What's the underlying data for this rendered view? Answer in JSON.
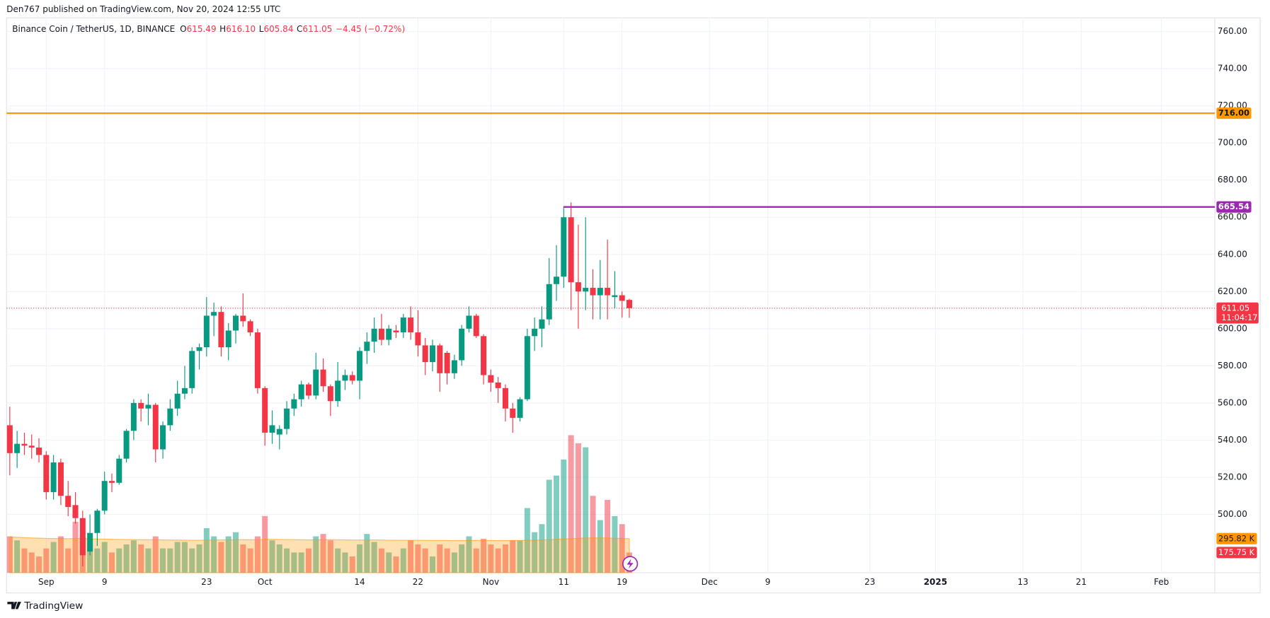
{
  "header": {
    "published": "Den767 published on TradingView.com, Nov 20, 2024 12:55 UTC",
    "brand": "TradingView"
  },
  "chart_data": {
    "type": "candlestick",
    "symbol": "Binance Coin / TetherUS, 1D, BINANCE",
    "legend": [
      {
        "label": "O",
        "value": "615.49"
      },
      {
        "label": "H",
        "value": "616.10"
      },
      {
        "label": "L",
        "value": "605.84"
      },
      {
        "label": "C",
        "value": "611.05"
      }
    ],
    "change": "−4.45 (−0.72%)",
    "up_color": "#089981",
    "down_color": "#f23645",
    "categories": [
      null,
      null,
      null,
      null,
      null,
      "Sep",
      null,
      null,
      null,
      null,
      null,
      null,
      null,
      "9",
      null,
      null,
      null,
      null,
      null,
      null,
      null,
      null,
      null,
      null,
      null,
      null,
      null,
      "23",
      null,
      null,
      null,
      null,
      null,
      null,
      null,
      "Oct",
      null,
      null,
      null,
      null,
      null,
      null,
      null,
      null,
      null,
      null,
      null,
      null,
      "14",
      null,
      null,
      null,
      null,
      null,
      null,
      null,
      "22",
      null,
      null,
      null,
      null,
      null,
      null,
      null,
      null,
      null,
      "Nov",
      null,
      null,
      null,
      null,
      null,
      null,
      null,
      null,
      null,
      "11",
      null,
      null,
      null,
      null,
      null,
      null,
      null,
      "19",
      null,
      null,
      null,
      null,
      null,
      null,
      null,
      null,
      null,
      null,
      null,
      "Dec",
      null,
      null,
      null,
      null,
      null,
      null,
      null,
      "9",
      null,
      null,
      null,
      null,
      null,
      null,
      null,
      null,
      null,
      null,
      null,
      null,
      null,
      "23",
      null,
      null,
      null,
      null,
      null,
      null,
      null,
      null,
      "2025",
      null,
      null,
      null,
      null,
      null,
      null,
      null,
      null,
      null,
      null,
      null,
      "13",
      null,
      null,
      null,
      null,
      null,
      null,
      null,
      "21",
      null,
      null,
      null,
      null,
      null,
      null,
      null,
      null,
      null,
      null,
      "Feb",
      null,
      null,
      null,
      null,
      null,
      null,
      null
    ],
    "open": [
      548,
      533,
      538,
      537,
      536,
      532,
      512,
      528,
      510,
      505,
      498,
      480,
      490,
      502,
      518,
      517,
      530,
      545,
      560,
      557,
      559,
      535,
      548,
      557,
      565,
      568,
      588,
      590,
      607,
      609,
      590,
      599,
      607,
      604,
      598,
      568,
      544,
      543,
      546,
      557,
      562,
      570,
      564,
      578,
      569,
      561,
      572,
      575,
      572,
      588,
      593,
      600,
      594,
      599,
      598,
      606,
      598,
      591,
      582,
      591,
      587,
      576,
      583,
      600,
      607,
      596,
      575,
      571,
      568,
      557,
      552,
      562,
      596,
      600,
      605,
      624,
      628,
      660,
      625,
      620,
      622,
      618,
      622,
      617,
      618,
      615.49,
      null,
      null,
      null,
      null,
      null,
      null,
      null,
      null,
      null,
      null,
      null,
      null,
      null,
      null,
      null,
      null,
      null,
      null,
      null,
      null,
      null,
      null,
      null,
      null,
      null,
      null,
      null,
      null,
      null,
      null,
      null,
      null,
      null,
      null,
      null,
      null,
      null,
      null,
      null,
      null,
      null,
      null,
      null,
      null,
      null,
      null,
      null,
      null,
      null,
      null,
      null,
      null,
      null,
      null,
      null,
      null,
      null,
      null,
      null,
      null,
      null,
      null,
      null,
      null,
      null,
      null,
      null,
      null,
      null,
      null,
      null,
      null,
      null,
      null,
      null,
      null,
      null,
      null,
      null,
      null
    ],
    "high": [
      558,
      545,
      544,
      543,
      541,
      534,
      532,
      530,
      518,
      512,
      502,
      500,
      503,
      523,
      522,
      532,
      546,
      562,
      562,
      565,
      560,
      550,
      562,
      572,
      580,
      590,
      592,
      617,
      614,
      612,
      603,
      608,
      619,
      605,
      600,
      569,
      556,
      548,
      561,
      565,
      572,
      571,
      587,
      584,
      570,
      582,
      578,
      577,
      590,
      598,
      606,
      608,
      602,
      602,
      608,
      612,
      610,
      595,
      594,
      592,
      588,
      586,
      602,
      612,
      608,
      597,
      578,
      574,
      570,
      560,
      563,
      600,
      606,
      612,
      638,
      645,
      666,
      668,
      656,
      660,
      632,
      637,
      648,
      631,
      620,
      616.1,
      null,
      null,
      null,
      null,
      null,
      null,
      null,
      null,
      null,
      null,
      null,
      null,
      null,
      null,
      null,
      null,
      null,
      null,
      null,
      null,
      null,
      null,
      null,
      null,
      null,
      null,
      null,
      null,
      null,
      null,
      null,
      null,
      null,
      null,
      null,
      null,
      null,
      null,
      null,
      null,
      null,
      null,
      null,
      null,
      null,
      null,
      null,
      null,
      null,
      null,
      null,
      null,
      null,
      null,
      null,
      null,
      null,
      null,
      null,
      null,
      null,
      null,
      null,
      null,
      null,
      null,
      null,
      null,
      null,
      null,
      null,
      null,
      null,
      null,
      null,
      null,
      null,
      null,
      null,
      null
    ],
    "low": [
      521,
      525,
      532,
      530,
      528,
      508,
      508,
      505,
      499,
      495,
      472,
      478,
      483,
      500,
      512,
      516,
      528,
      540,
      550,
      548,
      528,
      530,
      545,
      553,
      562,
      565,
      578,
      585,
      596,
      585,
      583,
      592,
      601,
      596,
      565,
      537,
      538,
      535,
      543,
      553,
      558,
      562,
      562,
      566,
      553,
      558,
      567,
      570,
      562,
      581,
      587,
      591,
      591,
      595,
      595,
      594,
      585,
      575,
      577,
      566,
      570,
      573,
      580,
      598,
      595,
      570,
      566,
      560,
      550,
      544,
      550,
      561,
      588,
      590,
      602,
      615,
      622,
      610,
      600,
      610,
      605,
      605,
      605,
      611,
      606,
      605.84,
      null,
      null,
      null,
      null,
      null,
      null,
      null,
      null,
      null,
      null,
      null,
      null,
      null,
      null,
      null,
      null,
      null,
      null,
      null,
      null,
      null,
      null,
      null,
      null,
      null,
      null,
      null,
      null,
      null,
      null,
      null,
      null,
      null,
      null,
      null,
      null,
      null,
      null,
      null,
      null,
      null,
      null,
      null,
      null,
      null,
      null,
      null,
      null,
      null,
      null,
      null,
      null,
      null,
      null,
      null,
      null,
      null,
      null,
      null,
      null,
      null,
      null,
      null,
      null,
      null,
      null,
      null,
      null,
      null,
      null,
      null,
      null,
      null,
      null,
      null,
      null,
      null,
      null,
      null,
      null
    ],
    "close": [
      533,
      538,
      537,
      536,
      532,
      512,
      528,
      510,
      504,
      498,
      478,
      490,
      502,
      518,
      517,
      530,
      545,
      560,
      557,
      559,
      535,
      548,
      557,
      565,
      568,
      588,
      590,
      607,
      609,
      590,
      599,
      607,
      604,
      598,
      568,
      544,
      548,
      546,
      557,
      562,
      570,
      564,
      578,
      569,
      561,
      572,
      575,
      572,
      588,
      593,
      600,
      594,
      600,
      598,
      606,
      598,
      591,
      582,
      591,
      576,
      576,
      583,
      600,
      607,
      596,
      575,
      571,
      568,
      557,
      552,
      562,
      596,
      600,
      605,
      624,
      628,
      660,
      625,
      620,
      622,
      618,
      622,
      618,
      618,
      615,
      611.05,
      null,
      null,
      null,
      null,
      null,
      null,
      null,
      null,
      null,
      null,
      null,
      null,
      null,
      null,
      null,
      null,
      null,
      null,
      null,
      null,
      null,
      null,
      null,
      null,
      null,
      null,
      null,
      null,
      null,
      null,
      null,
      null,
      null,
      null,
      null,
      null,
      null,
      null,
      null,
      null,
      null,
      null,
      null,
      null,
      null,
      null,
      null,
      null,
      null,
      null,
      null,
      null,
      null,
      null,
      null,
      null,
      null,
      null,
      null,
      null,
      null,
      null,
      null,
      null,
      null,
      null,
      null,
      null,
      null,
      null,
      null,
      null,
      null,
      null,
      null,
      null,
      null,
      null,
      null,
      null
    ],
    "volume": [
      316,
      281,
      211,
      176,
      141,
      211,
      267,
      316,
      211,
      443,
      316,
      246,
      211,
      267,
      176,
      211,
      246,
      281,
      246,
      211,
      316,
      211,
      211,
      267,
      267,
      211,
      246,
      387,
      316,
      267,
      316,
      352,
      246,
      211,
      316,
      492,
      281,
      246,
      211,
      176,
      176,
      211,
      316,
      337,
      281,
      211,
      176,
      141,
      246,
      337,
      267,
      211,
      176,
      141,
      211,
      281,
      246,
      211,
      141,
      246,
      211,
      176,
      246,
      316,
      211,
      295,
      246,
      211,
      246,
      281,
      281,
      562,
      352,
      422,
      808,
      844,
      984,
      1195,
      1125,
      1090,
      668,
      457,
      633,
      492,
      422,
      175.75,
      null,
      null,
      null,
      null,
      null,
      null,
      null,
      null,
      null,
      null,
      null,
      null,
      null,
      null,
      null,
      null,
      null,
      null,
      null,
      null,
      null,
      null,
      null,
      null,
      null,
      null,
      null,
      null,
      null,
      null,
      null,
      null,
      null,
      null,
      null,
      null,
      null,
      null,
      null,
      null,
      null,
      null,
      null,
      null,
      null,
      null,
      null,
      null,
      null,
      null,
      null,
      null,
      null,
      null,
      null,
      null,
      null,
      null,
      null,
      null,
      null,
      null,
      null,
      null,
      null,
      null,
      null,
      null,
      null,
      null,
      null,
      null,
      null,
      null,
      null,
      null,
      null,
      null,
      null,
      null
    ],
    "volume_ma": [
      310,
      308,
      305,
      302,
      300,
      298,
      297,
      297,
      295,
      298,
      297,
      295,
      293,
      292,
      290,
      289,
      288,
      288,
      287,
      286,
      287,
      285,
      284,
      284,
      283,
      282,
      282,
      284,
      285,
      285,
      286,
      287,
      287,
      286,
      287,
      290,
      290,
      289,
      288,
      287,
      286,
      285,
      286,
      287,
      287,
      286,
      285,
      284,
      284,
      285,
      285,
      284,
      283,
      282,
      282,
      282,
      282,
      281,
      280,
      280,
      280,
      279,
      279,
      280,
      280,
      280,
      280,
      279,
      279,
      280,
      280,
      282,
      283,
      284,
      287,
      290,
      293,
      296,
      299,
      301,
      302,
      302,
      301,
      299,
      297,
      295.82,
      null,
      null,
      null,
      null,
      null,
      null,
      null,
      null,
      null,
      null,
      null,
      null,
      null,
      null,
      null,
      null,
      null,
      null,
      null,
      null,
      null,
      null,
      null,
      null,
      null,
      null,
      null,
      null,
      null,
      null,
      null,
      null,
      null,
      null,
      null,
      null,
      null,
      null,
      null,
      null,
      null,
      null,
      null,
      null,
      null,
      null,
      null,
      null,
      null,
      null,
      null,
      null,
      null,
      null,
      null,
      null,
      null,
      null,
      null,
      null,
      null,
      null,
      null,
      null,
      null,
      null,
      null,
      null,
      null,
      null,
      null,
      null,
      null,
      null,
      null,
      null,
      null,
      null,
      null,
      null
    ],
    "volume_ma_color": "#ff9800",
    "volume_ylim": [
      0,
      4823
    ],
    "volume_labels": {
      "ma": "295.82 K",
      "volume": "175.75 K"
    },
    "ylim": [
      468.6,
      767.4
    ],
    "yticks": [
      {
        "value": 500,
        "label": "500.00"
      },
      {
        "value": 520,
        "label": "520.00"
      },
      {
        "value": 540,
        "label": "540.00"
      },
      {
        "value": 560,
        "label": "560.00"
      },
      {
        "value": 580,
        "label": "580.00"
      },
      {
        "value": 600,
        "label": "600.00"
      },
      {
        "value": 620,
        "label": "620.00"
      },
      {
        "value": 640,
        "label": "640.00"
      },
      {
        "value": 660,
        "label": "660.00"
      },
      {
        "value": 680,
        "label": "680.00"
      },
      {
        "value": 700,
        "label": "700.00"
      },
      {
        "value": 720,
        "label": "720.00"
      },
      {
        "value": 740,
        "label": "740.00"
      },
      {
        "value": 760,
        "label": "760.00"
      }
    ],
    "grid": true,
    "levels": [
      {
        "value": 716,
        "label": "716.00",
        "color": "#ff9800",
        "text_color": "#131722"
      },
      {
        "value": 665.54,
        "label": "665.54",
        "color": "#9c27b0",
        "text_color": "#ffffff"
      }
    ],
    "last_price": {
      "value": 611.05,
      "label": "611.05",
      "countdown": "11:04:17",
      "color": "#f23645"
    }
  }
}
